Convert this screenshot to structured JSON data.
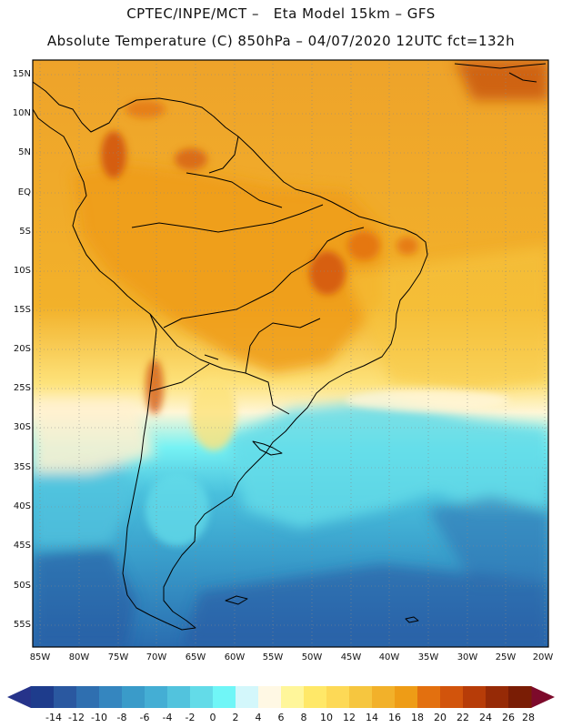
{
  "header": {
    "line1": "CPTEC/INPE/MCT –   Eta Model 15km – GFS",
    "line2": "Absolute Temperature (C) 850hPa – 04/07/2020 12UTC fct=132h"
  },
  "map": {
    "lat_labels": [
      "15N",
      "10N",
      "5N",
      "EQ",
      "5S",
      "10S",
      "15S",
      "20S",
      "25S",
      "30S",
      "35S",
      "40S",
      "45S",
      "50S",
      "55S"
    ],
    "lon_labels": [
      "85W",
      "80W",
      "75W",
      "70W",
      "65W",
      "60W",
      "55W",
      "50W",
      "45W",
      "40W",
      "35W",
      "30W",
      "25W",
      "20W"
    ],
    "extent": {
      "west_deg": -85,
      "east_deg": -20,
      "north_deg": 16,
      "south_deg": -58
    }
  },
  "colorbar": {
    "labels": [
      "-14",
      "-12",
      "-10",
      "-8",
      "-6",
      "-4",
      "-2",
      "0",
      "2",
      "4",
      "6",
      "8",
      "10",
      "12",
      "14",
      "16",
      "18",
      "20",
      "22",
      "24",
      "26",
      "28"
    ],
    "colors": [
      "#1e3c8c",
      "#2a58a0",
      "#2f6fb0",
      "#3586bf",
      "#3a9bc9",
      "#44aed4",
      "#52c3dd",
      "#63dbe8",
      "#70f6f7",
      "#d3f7fb",
      "#fff8e4",
      "#fff69a",
      "#ffe868",
      "#fdd956",
      "#f6c63f",
      "#f2b12a",
      "#ee9c16",
      "#e3700f",
      "#d2540c",
      "#b73c08",
      "#962a06",
      "#7a1d05"
    ],
    "left_arrow_color": "#26338a",
    "right_arrow_color": "#7d0a2b"
  }
}
